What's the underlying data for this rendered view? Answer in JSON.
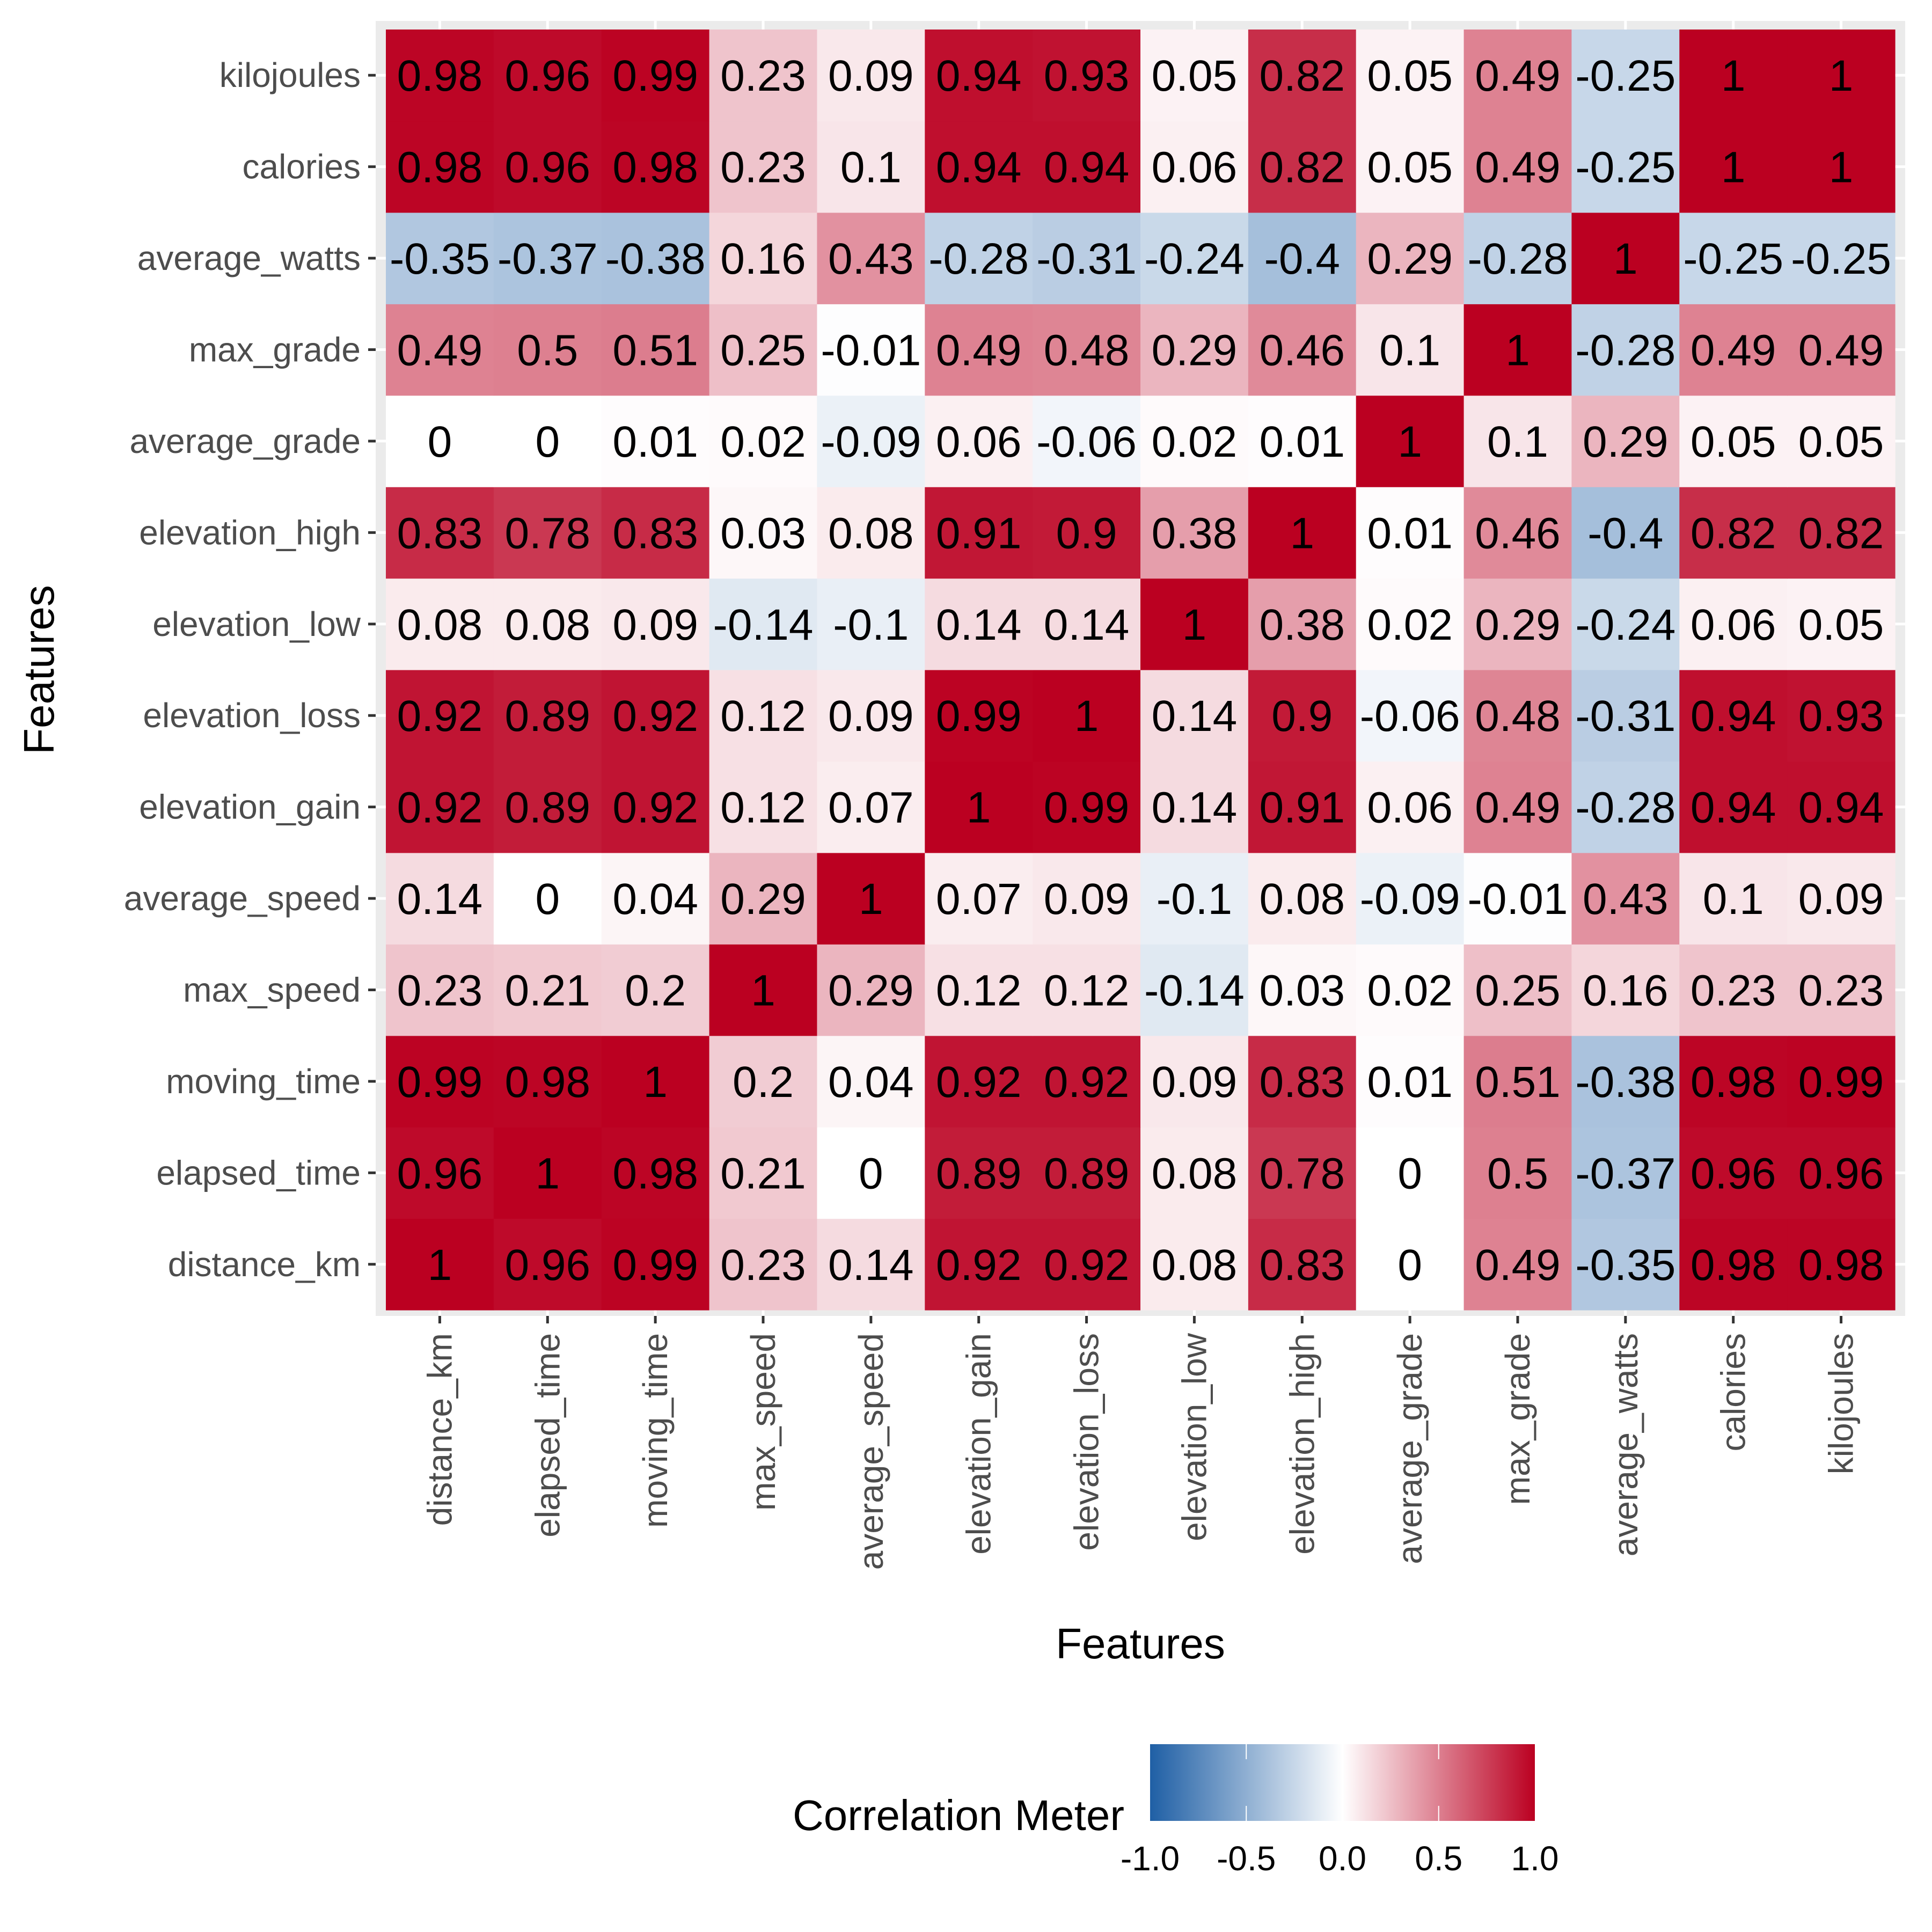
{
  "chart_data": {
    "type": "heatmap",
    "title": "",
    "xlabel": "Features",
    "ylabel": "Features",
    "x_categories": [
      "distance_km",
      "elapsed_time",
      "moving_time",
      "max_speed",
      "average_speed",
      "elevation_gain",
      "elevation_loss",
      "elevation_low",
      "elevation_high",
      "average_grade",
      "max_grade",
      "average_watts",
      "calories",
      "kilojoules"
    ],
    "y_categories_bottom_to_top": [
      "distance_km",
      "elapsed_time",
      "moving_time",
      "max_speed",
      "average_speed",
      "elevation_gain",
      "elevation_loss",
      "elevation_low",
      "elevation_high",
      "average_grade",
      "max_grade",
      "average_watts",
      "calories",
      "kilojoules"
    ],
    "values_rows_bottom_to_top": [
      [
        1,
        0.96,
        0.99,
        0.23,
        0.14,
        0.92,
        0.92,
        0.08,
        0.83,
        0,
        0.49,
        -0.35,
        0.98,
        0.98
      ],
      [
        0.96,
        1,
        0.98,
        0.21,
        0,
        0.89,
        0.89,
        0.08,
        0.78,
        0,
        0.5,
        -0.37,
        0.96,
        0.96
      ],
      [
        0.99,
        0.98,
        1,
        0.2,
        0.04,
        0.92,
        0.92,
        0.09,
        0.83,
        0.01,
        0.51,
        -0.38,
        0.98,
        0.99
      ],
      [
        0.23,
        0.21,
        0.2,
        1,
        0.29,
        0.12,
        0.12,
        -0.14,
        0.03,
        0.02,
        0.25,
        0.16,
        0.23,
        0.23
      ],
      [
        0.14,
        0,
        0.04,
        0.29,
        1,
        0.07,
        0.09,
        -0.1,
        0.08,
        -0.09,
        -0.01,
        0.43,
        0.1,
        0.09
      ],
      [
        0.92,
        0.89,
        0.92,
        0.12,
        0.07,
        1,
        0.99,
        0.14,
        0.91,
        0.06,
        0.49,
        -0.28,
        0.94,
        0.94
      ],
      [
        0.92,
        0.89,
        0.92,
        0.12,
        0.09,
        0.99,
        1,
        0.14,
        0.9,
        -0.06,
        0.48,
        -0.31,
        0.94,
        0.93
      ],
      [
        0.08,
        0.08,
        0.09,
        -0.14,
        -0.1,
        0.14,
        0.14,
        1,
        0.38,
        0.02,
        0.29,
        -0.24,
        0.06,
        0.05
      ],
      [
        0.83,
        0.78,
        0.83,
        0.03,
        0.08,
        0.91,
        0.9,
        0.38,
        1,
        0.01,
        0.46,
        -0.4,
        0.82,
        0.82
      ],
      [
        0,
        0,
        0.01,
        0.02,
        -0.09,
        0.06,
        -0.06,
        0.02,
        0.01,
        1,
        0.1,
        0.29,
        0.05,
        0.05
      ],
      [
        0.49,
        0.5,
        0.51,
        0.25,
        -0.01,
        0.49,
        0.48,
        0.29,
        0.46,
        0.1,
        1,
        -0.28,
        0.49,
        0.49
      ],
      [
        -0.35,
        -0.37,
        -0.38,
        0.16,
        0.43,
        -0.28,
        -0.31,
        -0.24,
        -0.4,
        0.29,
        -0.28,
        1,
        -0.25,
        -0.25
      ],
      [
        0.98,
        0.96,
        0.98,
        0.23,
        0.1,
        0.94,
        0.94,
        0.06,
        0.82,
        0.05,
        0.49,
        -0.25,
        1,
        1
      ],
      [
        0.98,
        0.96,
        0.99,
        0.23,
        0.09,
        0.94,
        0.93,
        0.05,
        0.82,
        0.05,
        0.49,
        -0.25,
        1,
        1
      ]
    ],
    "color_scale": {
      "low": "#1F5FA5",
      "mid": "#FFFFFF",
      "high": "#BB0021",
      "limits": [
        -1,
        1
      ]
    },
    "legend": {
      "title": "Correlation Meter",
      "ticks": [
        "-1.0",
        "-0.5",
        "0.0",
        "0.5",
        "1.0"
      ],
      "tick_values": [
        -1,
        -0.5,
        0,
        0.5,
        1
      ],
      "placement": "bottom"
    },
    "panel_background": "#EBEBEB",
    "grid": true
  }
}
